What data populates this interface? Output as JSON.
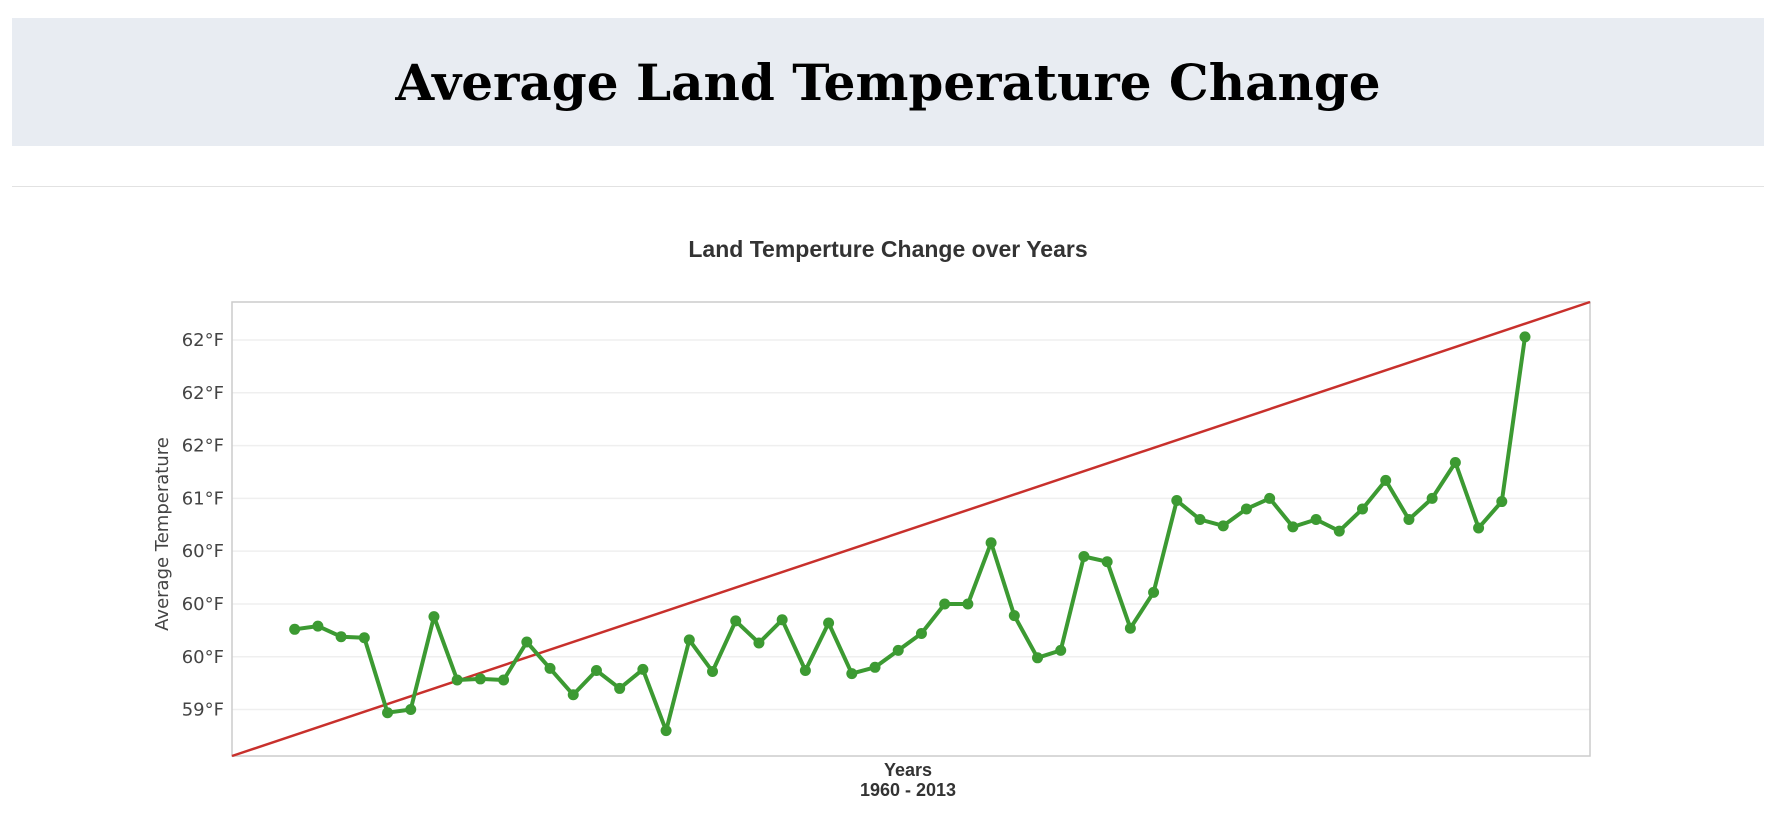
{
  "header": {
    "title": "Average Land Temperature Change"
  },
  "chart_data": {
    "type": "line",
    "title": "Land Temperture Change over Years",
    "xlabel": "Years",
    "xlabel_sub": "1960 - 2013",
    "ylabel": "Average Temperature",
    "ytick_labels": [
      "59°F",
      "60°F",
      "60°F",
      "60°F",
      "61°F",
      "62°F",
      "62°F",
      "62°F"
    ],
    "yticks": [
      59.0,
      59.5,
      60.0,
      60.5,
      61.0,
      61.5,
      62.0,
      62.5
    ],
    "ylim": [
      58.56,
      62.86
    ],
    "xlim": [
      1957.3,
      2015.8
    ],
    "grid": true,
    "colors": {
      "series": "#3c9a32",
      "trend": "#c8302c",
      "grid": "#efefef",
      "frame": "#cccccc"
    },
    "series": [
      {
        "x": [
          1960,
          1961,
          1962,
          1963,
          1964,
          1965,
          1966,
          1967,
          1968,
          1969,
          1970,
          1971,
          1972,
          1973,
          1974,
          1975,
          1976,
          1977,
          1978,
          1979,
          1980,
          1981,
          1982,
          1983,
          1984,
          1985,
          1986,
          1987,
          1988,
          1989,
          1990,
          1991,
          1992,
          1993,
          1994,
          1995,
          1996,
          1997,
          1998,
          1999,
          2000,
          2001,
          2002,
          2003,
          2004,
          2005,
          2006,
          2007,
          2008,
          2009,
          2010,
          2011,
          2012,
          2013
        ],
        "values": [
          59.76,
          59.79,
          59.69,
          59.68,
          58.97,
          59.0,
          59.88,
          59.28,
          59.29,
          59.28,
          59.64,
          59.39,
          59.14,
          59.37,
          59.2,
          59.38,
          58.8,
          59.66,
          59.36,
          59.84,
          59.63,
          59.85,
          59.37,
          59.82,
          59.34,
          59.4,
          59.56,
          59.72,
          60.0,
          60.0,
          60.58,
          59.89,
          59.49,
          59.56,
          60.45,
          60.4,
          59.77,
          60.11,
          60.98,
          60.8,
          60.74,
          60.9,
          61.0,
          60.73,
          60.8,
          60.69,
          60.9,
          61.17,
          60.8,
          61.0,
          61.34,
          60.72,
          60.97,
          62.53
        ]
      }
    ],
    "trend": {
      "x": [
        1957.3,
        2015.8
      ],
      "values": [
        58.56,
        62.86
      ]
    }
  }
}
